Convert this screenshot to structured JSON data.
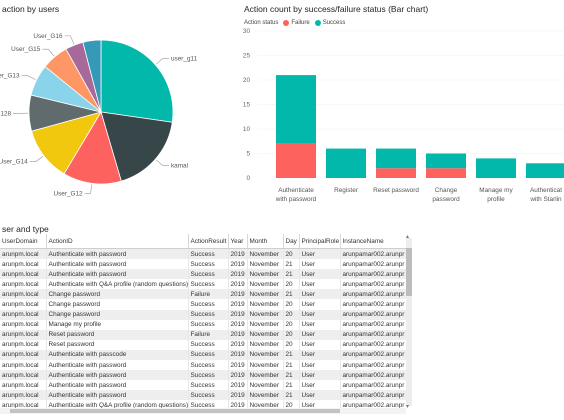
{
  "pie": {
    "title": "action by users",
    "slices": [
      {
        "label": "user_g11",
        "value": 27,
        "color": "#01B8AA"
      },
      {
        "label": "kamal",
        "value": 18,
        "color": "#374649"
      },
      {
        "label": "User_G12",
        "value": 13,
        "color": "#FD625E"
      },
      {
        "label": "User_G14",
        "value": 12,
        "color": "#F2C80F"
      },
      {
        "label": "G128",
        "value": 8,
        "color": "#5F6B6D"
      },
      {
        "label": "User_G13",
        "value": 7,
        "color": "#8AD4EB"
      },
      {
        "label": "User_G15",
        "value": 6,
        "color": "#FE9666"
      },
      {
        "label": "User_G16",
        "value": 4,
        "color": "#A66999"
      },
      {
        "label": "",
        "value": 4,
        "color": "#3599B8"
      }
    ]
  },
  "bar": {
    "title": "Action count by success/failure status (Bar chart)",
    "legend_title": "Action status",
    "legend": [
      {
        "name": "Failure",
        "color": "#FD625E"
      },
      {
        "name": "Success",
        "color": "#01B8AA"
      }
    ]
  },
  "chart_data": {
    "type": "bar",
    "title": "Action count by success/failure status (Bar chart)",
    "categories": [
      [
        "Authenticate",
        "with password"
      ],
      [
        "Register"
      ],
      [
        "Reset password"
      ],
      [
        "Change",
        "password"
      ],
      [
        "Manage my",
        "profile"
      ],
      [
        "Authenticat",
        "with Starlin"
      ]
    ],
    "series": [
      {
        "name": "Failure",
        "color": "#FD625E",
        "values": [
          7,
          0,
          2,
          2,
          0,
          0
        ]
      },
      {
        "name": "Success",
        "color": "#01B8AA",
        "values": [
          14,
          6,
          4,
          3,
          4,
          3
        ]
      }
    ],
    "ylim": [
      0,
      30
    ],
    "yticks": [
      0,
      5,
      10,
      15,
      20,
      25,
      30
    ],
    "grid": true,
    "legend_position": "top-left"
  },
  "table": {
    "title": "ser and type",
    "columns": [
      "UserDomain",
      "ActionID",
      "ActionResult",
      "Year",
      "Month",
      "Day",
      "PrincipalRole",
      "InstanceName"
    ],
    "rows": [
      [
        "arunpm.local",
        "Authenticate with password",
        "Success",
        "2019",
        "November",
        "20",
        "User",
        "arunpamar002.arunpr"
      ],
      [
        "arunpm.local",
        "Authenticate with password",
        "Success",
        "2019",
        "November",
        "21",
        "User",
        "arunpamar002.arunpr"
      ],
      [
        "arunpm.local",
        "Authenticate with password",
        "Success",
        "2019",
        "November",
        "21",
        "User",
        "arunpamar002.arunpr"
      ],
      [
        "arunpm.local",
        "Authenticate with Q&A profile (random questions)",
        "Success",
        "2019",
        "November",
        "20",
        "User",
        "arunpamar002.arunpr"
      ],
      [
        "arunpm.local",
        "Change password",
        "Failure",
        "2019",
        "November",
        "21",
        "User",
        "arunpamar002.arunpr"
      ],
      [
        "arunpm.local",
        "Change password",
        "Success",
        "2019",
        "November",
        "20",
        "User",
        "arunpamar002.arunpr"
      ],
      [
        "arunpm.local",
        "Change password",
        "Success",
        "2019",
        "November",
        "20",
        "User",
        "arunpamar002.arunpr"
      ],
      [
        "arunpm.local",
        "Manage my profile",
        "Success",
        "2019",
        "November",
        "20",
        "User",
        "arunpamar002.arunpr"
      ],
      [
        "arunpm.local",
        "Reset password",
        "Failure",
        "2019",
        "November",
        "20",
        "User",
        "arunpamar002.arunpr"
      ],
      [
        "arunpm.local",
        "Reset password",
        "Success",
        "2019",
        "November",
        "20",
        "User",
        "arunpamar002.arunpr"
      ],
      [
        "arunpm.local",
        "Authenticate with passcode",
        "Success",
        "2019",
        "November",
        "21",
        "User",
        "arunpamar002.arunpr"
      ],
      [
        "arunpm.local",
        "Authenticate with password",
        "Success",
        "2019",
        "November",
        "21",
        "User",
        "arunpamar002.arunpr"
      ],
      [
        "arunpm.local",
        "Authenticate with password",
        "Success",
        "2019",
        "November",
        "21",
        "User",
        "arunpamar002.arunpr"
      ],
      [
        "arunpm.local",
        "Authenticate with password",
        "Success",
        "2019",
        "November",
        "21",
        "User",
        "arunpamar002.arunpr"
      ],
      [
        "arunpm.local",
        "Authenticate with password",
        "Success",
        "2019",
        "November",
        "21",
        "User",
        "arunpamar002.arunpr"
      ],
      [
        "arunpm.local",
        "Authenticate with Q&A profile (random questions)",
        "Success",
        "2019",
        "November",
        "20",
        "User",
        "arunpamar002.arunpr"
      ]
    ]
  }
}
